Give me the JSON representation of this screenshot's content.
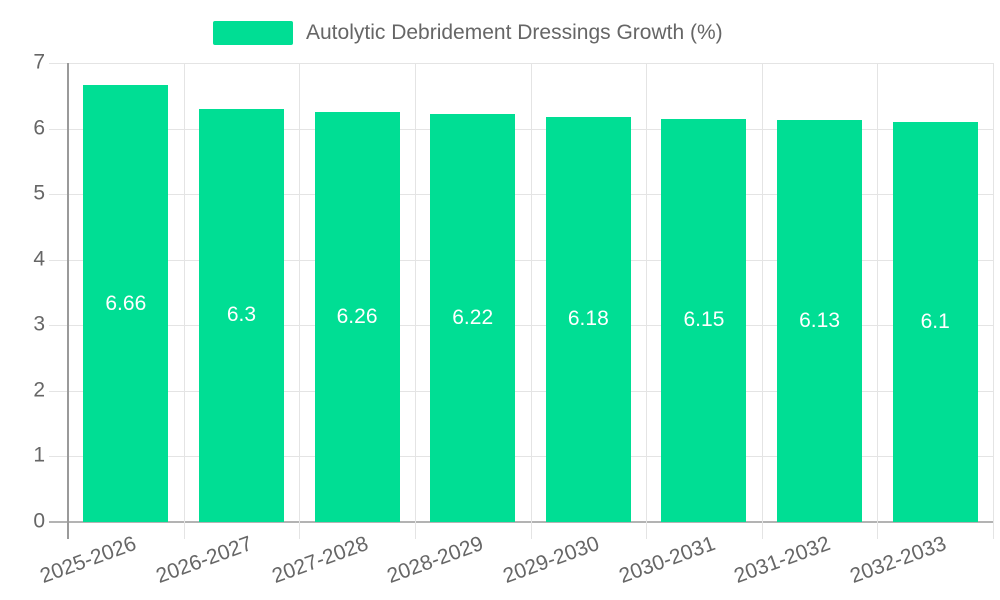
{
  "legend": {
    "label": "Autolytic Debridement Dressings Growth (%)"
  },
  "chart_data": {
    "type": "bar",
    "title": "Autolytic Debridement Dressings Growth (%)",
    "categories": [
      "2025-2026",
      "2026-2027",
      "2027-2028",
      "2028-2029",
      "2029-2030",
      "2030-2031",
      "2031-2032",
      "2032-2033"
    ],
    "values": [
      6.66,
      6.3,
      6.26,
      6.22,
      6.18,
      6.15,
      6.13,
      6.1
    ],
    "value_labels": [
      "6.66",
      "6.3",
      "6.26",
      "6.22",
      "6.18",
      "6.15",
      "6.13",
      "6.1"
    ],
    "xlabel": "",
    "ylabel": "",
    "ylim": [
      0,
      7
    ],
    "yticks": [
      0,
      1,
      2,
      3,
      4,
      5,
      6,
      7
    ],
    "grid": true,
    "legend_position": "top-center",
    "x_label_rotation_deg": -20,
    "colors": {
      "bar": "#00DE94",
      "bar_value_label": "#ffffff",
      "axis_text": "#666666",
      "grid_line": "#e4e4e4",
      "y_axis_line": "#9a9a9a",
      "baseline": "#b3b3b3",
      "background": "#ffffff"
    }
  }
}
